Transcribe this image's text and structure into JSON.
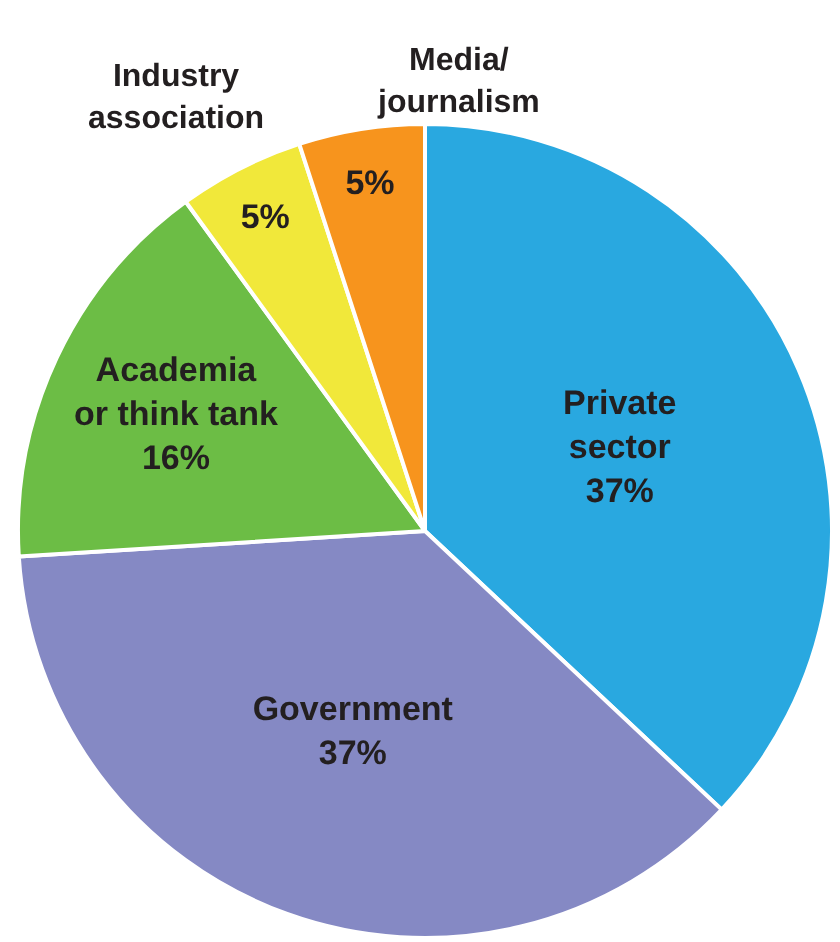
{
  "chart_data": {
    "type": "pie",
    "categories": [
      "Private\nsector",
      "Government",
      "Academia\nor think tank",
      "Industry\nassociation",
      "Media/\njournalism"
    ],
    "values": [
      37,
      37,
      16,
      5,
      5
    ],
    "value_labels": [
      "37%",
      "37%",
      "16%",
      "5%",
      "5%"
    ],
    "colors": [
      "#29a8e0",
      "#8589c4",
      "#6cbd45",
      "#f1e83a",
      "#f7941d"
    ]
  }
}
